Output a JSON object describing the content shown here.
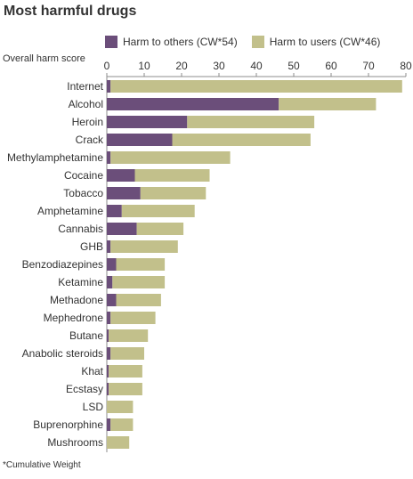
{
  "colors": {
    "others": "#6b4e7a",
    "users": "#c2c08b",
    "axis": "#8c8c8c",
    "grid": "#dddddd"
  },
  "chart_data": {
    "type": "bar",
    "orientation": "horizontal",
    "stacked": true,
    "title": "Most harmful drugs",
    "xlabel": "Overall harm score",
    "footnote": "*Cumulative Weight",
    "xlim": [
      0,
      80
    ],
    "xticks": [
      0,
      10,
      20,
      30,
      40,
      50,
      60,
      70,
      80
    ],
    "legend_position": "top",
    "categories": [
      "Internet",
      "Alcohol",
      "Heroin",
      "Crack",
      "Methylamphetamine",
      "Cocaine",
      "Tobacco",
      "Amphetamine",
      "Cannabis",
      "GHB",
      "Benzodiazepines",
      "Ketamine",
      "Methadone",
      "Mephedrone",
      "Butane",
      "Anabolic steroids",
      "Khat",
      "Ecstasy",
      "LSD",
      "Buprenorphine",
      "Mushrooms"
    ],
    "series": [
      {
        "name": "Harm to others (CW*54)",
        "values": [
          1,
          46,
          21.5,
          17.5,
          1,
          7.5,
          9,
          4,
          8,
          1,
          2.5,
          1.5,
          2.5,
          1,
          0.5,
          1,
          0.5,
          0.5,
          0,
          1,
          0
        ]
      },
      {
        "name": "Harm to users (CW*46)",
        "values": [
          78,
          26,
          34,
          37,
          32,
          20,
          17.5,
          19.5,
          12.5,
          18,
          13,
          14,
          12,
          12,
          10.5,
          9,
          9,
          9,
          7,
          6,
          6
        ]
      }
    ]
  }
}
